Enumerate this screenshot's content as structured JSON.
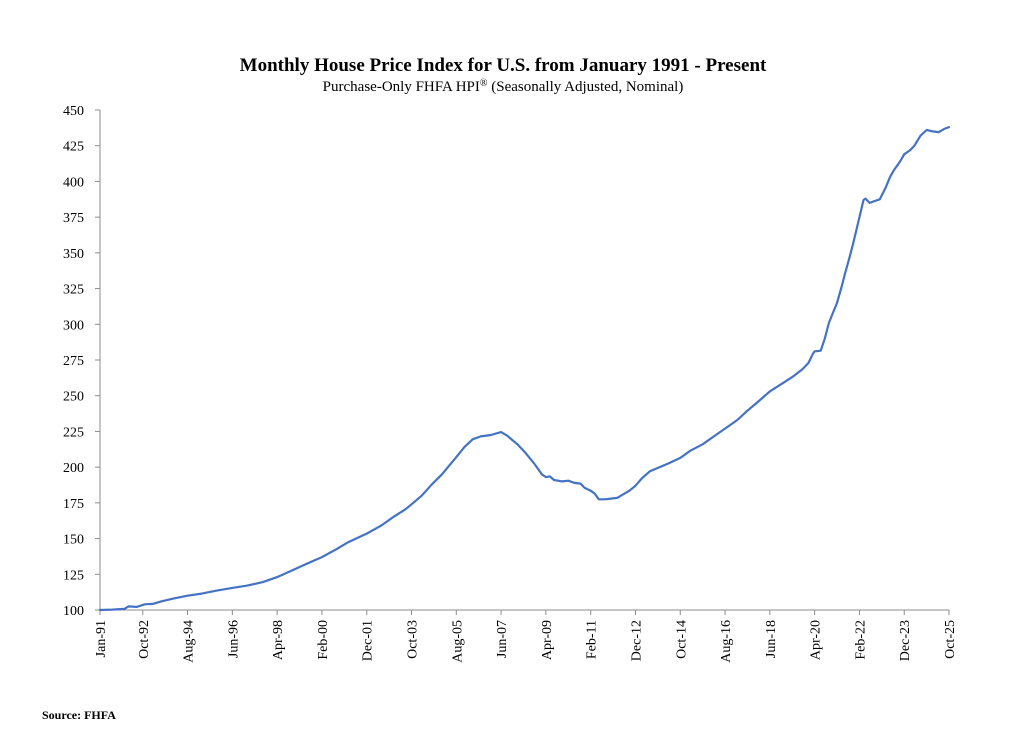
{
  "chart_data": {
    "type": "line",
    "title": "Monthly House Price Index for U.S. from January 1991 - Present",
    "subtitle": "Purchase-Only FHFA HPI",
    "subtitle_mark": "®",
    "subtitle_tail": " (Seasonally Adjusted, Nominal)",
    "ylim": [
      100,
      450
    ],
    "yticks": [
      100,
      125,
      150,
      175,
      200,
      225,
      250,
      275,
      300,
      325,
      350,
      375,
      400,
      425,
      450
    ],
    "xlim": [
      0,
      417
    ],
    "xticks": [
      {
        "label": "Jan-91",
        "month": 0
      },
      {
        "label": "Oct-92",
        "month": 21
      },
      {
        "label": "Aug-94",
        "month": 43
      },
      {
        "label": "Jun-96",
        "month": 65
      },
      {
        "label": "Apr-98",
        "month": 87
      },
      {
        "label": "Feb-00",
        "month": 109
      },
      {
        "label": "Dec-01",
        "month": 131
      },
      {
        "label": "Oct-03",
        "month": 153
      },
      {
        "label": "Aug-05",
        "month": 175
      },
      {
        "label": "Jun-07",
        "month": 197
      },
      {
        "label": "Apr-09",
        "month": 219
      },
      {
        "label": "Feb-11",
        "month": 241
      },
      {
        "label": "Dec-12",
        "month": 263
      },
      {
        "label": "Oct-14",
        "month": 285
      },
      {
        "label": "Aug-16",
        "month": 307
      },
      {
        "label": "Jun-18",
        "month": 329
      },
      {
        "label": "Apr-20",
        "month": 351
      },
      {
        "label": "Feb-22",
        "month": 373
      },
      {
        "label": "Dec-23",
        "month": 395
      },
      {
        "label": "Oct-25",
        "month": 417
      }
    ],
    "x_unit": "months since Jan-1991",
    "series": [
      {
        "name": "Purchase-Only FHFA HPI (SA, Nominal)",
        "color": "#4472C4",
        "points": [
          [
            0,
            100
          ],
          [
            6,
            100.3
          ],
          [
            12,
            100.8
          ],
          [
            14,
            102.5
          ],
          [
            18,
            102.2
          ],
          [
            22,
            104
          ],
          [
            26,
            104.3
          ],
          [
            30,
            106
          ],
          [
            36,
            108
          ],
          [
            43,
            110
          ],
          [
            50,
            111.5
          ],
          [
            57,
            113.5
          ],
          [
            65,
            115.5
          ],
          [
            72,
            117
          ],
          [
            80,
            119.5
          ],
          [
            87,
            123
          ],
          [
            94,
            127.5
          ],
          [
            101,
            132
          ],
          [
            109,
            137
          ],
          [
            116,
            142.5
          ],
          [
            122,
            147.5
          ],
          [
            131,
            153.5
          ],
          [
            138,
            159
          ],
          [
            144,
            165
          ],
          [
            150,
            170.5
          ],
          [
            153,
            174
          ],
          [
            158,
            180
          ],
          [
            163,
            188
          ],
          [
            168,
            195
          ],
          [
            175,
            207
          ],
          [
            179,
            214
          ],
          [
            183,
            219.5
          ],
          [
            187,
            221.5
          ],
          [
            192,
            222.5
          ],
          [
            197,
            224.5
          ],
          [
            200,
            222
          ],
          [
            205,
            216
          ],
          [
            209,
            210
          ],
          [
            213,
            203
          ],
          [
            217,
            195
          ],
          [
            219,
            193
          ],
          [
            221,
            193.5
          ],
          [
            223,
            191
          ],
          [
            227,
            190
          ],
          [
            230,
            190.5
          ],
          [
            233,
            189
          ],
          [
            236,
            188.5
          ],
          [
            238,
            185.5
          ],
          [
            241,
            183.5
          ],
          [
            243,
            181.5
          ],
          [
            245,
            177.5
          ],
          [
            248,
            177.5
          ],
          [
            251,
            178
          ],
          [
            254,
            178.5
          ],
          [
            257,
            181
          ],
          [
            260,
            183.5
          ],
          [
            263,
            187
          ],
          [
            266,
            192
          ],
          [
            270,
            197
          ],
          [
            274,
            199.5
          ],
          [
            279,
            202.5
          ],
          [
            285,
            206.5
          ],
          [
            290,
            211.5
          ],
          [
            296,
            216
          ],
          [
            301,
            221
          ],
          [
            307,
            227
          ],
          [
            313,
            233
          ],
          [
            318,
            239.5
          ],
          [
            323,
            245.5
          ],
          [
            329,
            253
          ],
          [
            335,
            258.5
          ],
          [
            340,
            263
          ],
          [
            345,
            268.5
          ],
          [
            348,
            273
          ],
          [
            350,
            279
          ],
          [
            351,
            281
          ],
          [
            354,
            281.5
          ],
          [
            356,
            290
          ],
          [
            358,
            301
          ],
          [
            360,
            308
          ],
          [
            362,
            315
          ],
          [
            364,
            325
          ],
          [
            366,
            336
          ],
          [
            368,
            346
          ],
          [
            370,
            357
          ],
          [
            372,
            369
          ],
          [
            374,
            381
          ],
          [
            375,
            387
          ],
          [
            376,
            388
          ],
          [
            378,
            385
          ],
          [
            380,
            386
          ],
          [
            383,
            387.5
          ],
          [
            386,
            396
          ],
          [
            388,
            403
          ],
          [
            390,
            408
          ],
          [
            392,
            412
          ],
          [
            393,
            414
          ],
          [
            395,
            419
          ],
          [
            398,
            422
          ],
          [
            400,
            425
          ],
          [
            403,
            432
          ],
          [
            406,
            436
          ],
          [
            409,
            435
          ],
          [
            412,
            434.5
          ],
          [
            415,
            437
          ],
          [
            417,
            438
          ]
        ]
      }
    ],
    "source": "Source: FHFA"
  }
}
